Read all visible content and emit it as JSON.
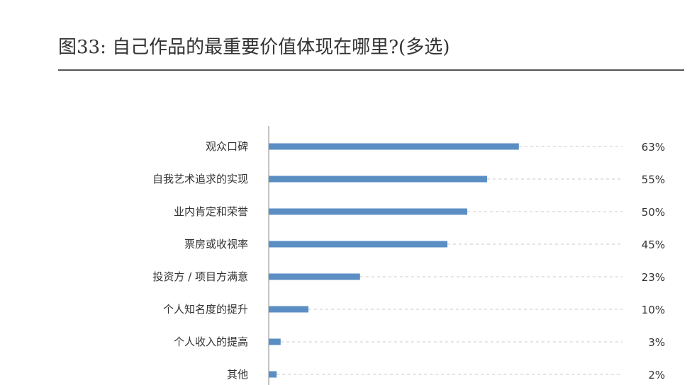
{
  "title": "图33: 自己作品的最重要价值体现在哪里?(多选)",
  "chart_data": {
    "type": "bar",
    "orientation": "horizontal",
    "categories": [
      "观众口碑",
      "自我艺术追求的实现",
      "业内肯定和荣誉",
      "票房或收视率",
      "投资方 / 项目方满意",
      "个人知名度的提升",
      "个人收入的提高",
      "其他"
    ],
    "values": [
      63,
      55,
      50,
      45,
      23,
      10,
      3,
      2
    ],
    "value_labels": [
      "63%",
      "55%",
      "50%",
      "45%",
      "23%",
      "10%",
      "3%",
      "2%"
    ],
    "unit": "%",
    "xlim": [
      0,
      100
    ],
    "bar_color": "#5b8fc4",
    "guide_line_color": "#c8c8c8",
    "axis_color": "#b0b0b0",
    "guide_lines": "dashed",
    "legend": "none"
  }
}
